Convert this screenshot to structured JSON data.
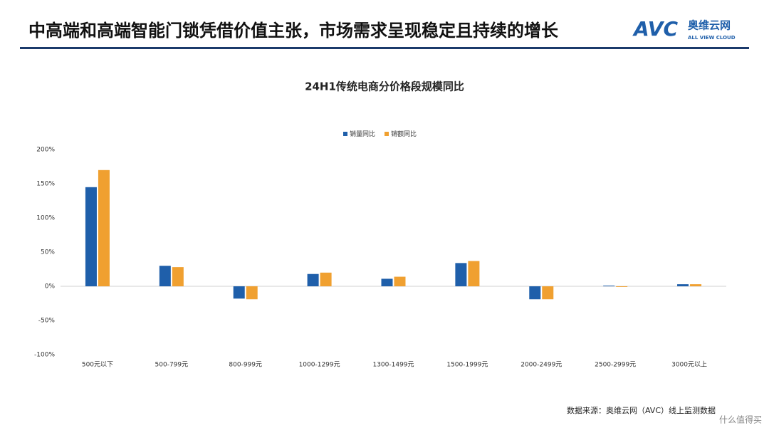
{
  "header": {
    "title": "中高端和高端智能门锁凭借价值主张，市场需求呈现稳定且持续的增长",
    "logo": {
      "mark": "AVC",
      "name": "奥维云网",
      "tagline": "ALL VIEW CLOUD"
    }
  },
  "chart_data": {
    "type": "bar",
    "title": "24H1传统电商分价格段规模同比",
    "categories": [
      "500元以下",
      "500-799元",
      "800-999元",
      "1000-1299元",
      "1300-1499元",
      "1500-1999元",
      "2000-2499元",
      "2500-2999元",
      "3000元以上"
    ],
    "series": [
      {
        "name": "销量同比",
        "color": "#1f5faa",
        "values": [
          145,
          30,
          -18,
          18,
          11,
          34,
          -19,
          1,
          3
        ]
      },
      {
        "name": "销额同比",
        "color": "#f0a030",
        "values": [
          170,
          28,
          -19,
          20,
          14,
          37,
          -19,
          -1,
          3
        ]
      }
    ],
    "ylim": [
      -100,
      200
    ],
    "yticks": [
      {
        "value": -100,
        "label": "-100%"
      },
      {
        "value": -50,
        "label": "-50%"
      },
      {
        "value": 0,
        "label": "0%"
      },
      {
        "value": 50,
        "label": "50%"
      },
      {
        "value": 100,
        "label": "100%"
      },
      {
        "value": 150,
        "label": "150%"
      },
      {
        "value": 200,
        "label": "200%"
      }
    ],
    "grid": false,
    "legend": "top"
  },
  "footer": {
    "source": "数据来源：奥维云网（AVC）线上监测数据",
    "watermark": "什么值得买"
  }
}
